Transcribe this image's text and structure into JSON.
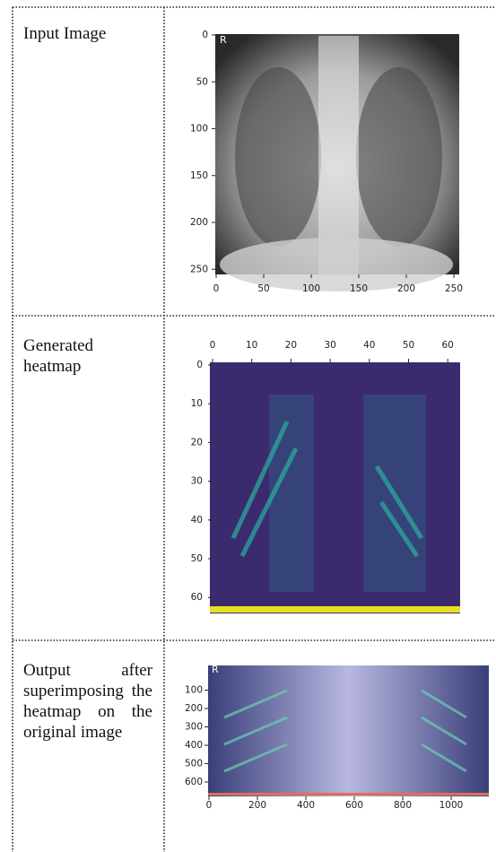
{
  "table": {
    "rows": [
      {
        "label": "Input Image",
        "figure": {
          "corner_label": "R",
          "xticks": [
            0,
            50,
            100,
            150,
            200,
            250
          ],
          "yticks": [
            0,
            50,
            100,
            150,
            200,
            250
          ]
        }
      },
      {
        "label": "Generated heatmap",
        "figure": {
          "xticks": [
            0,
            10,
            20,
            30,
            40,
            50,
            60
          ],
          "yticks": [
            0,
            10,
            20,
            30,
            40,
            50,
            60
          ]
        }
      },
      {
        "label": "Output after superimposing the heatmap on the original image",
        "figure": {
          "corner_label": "R",
          "xticks": [
            0,
            200,
            400,
            600,
            800,
            1000
          ],
          "yticks": [
            100,
            200,
            300,
            400,
            500,
            600
          ]
        }
      }
    ]
  }
}
